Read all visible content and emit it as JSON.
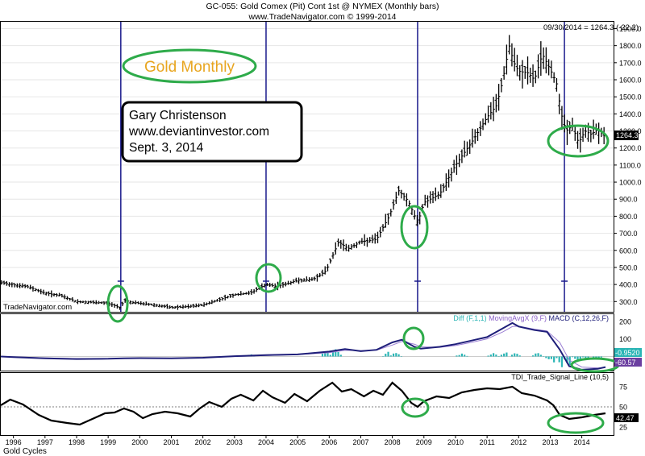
{
  "header": {
    "title": "GC-055:  Gold Comex (Pit) Cont 1st @ NYMEX  (Monthly bars)",
    "subtitle": "www.TradeNavigator.com © 1999-2014"
  },
  "price_readout": "09/30/2014 = 1264.3 (-22.2)",
  "watermark": "TradeNavigator.com",
  "footer_label": "Gold Cycles",
  "annotations": {
    "oval_title": "Gold Monthly",
    "box_lines": [
      "Gary Christenson",
      "www.deviantinvestor.com",
      "Sept. 3, 2014"
    ]
  },
  "colors": {
    "price_bars": "#000000",
    "cycle_lines": "#1a1a8c",
    "ovals": "#2eab4a",
    "oval_title": "#e8a51f",
    "macd_line": "#1f1f7a",
    "macd_signal": "#9b7fd4",
    "macd_hist": "#2bb5b5",
    "tdi_line": "#000000"
  },
  "chart_data": [
    {
      "type": "bar",
      "subtype": "ohlc",
      "ylim": [
        240,
        1940
      ],
      "yticks": [
        "300.0",
        "400.0",
        "500.0",
        "600.0",
        "700.0",
        "800.0",
        "900.0",
        "1000.0",
        "1100.0",
        "1200.0",
        "1300.0",
        "1400.0",
        "1500.0",
        "1600.0",
        "1700.0",
        "1800.0",
        "1900.0"
      ],
      "xticks": [
        "1996",
        "1997",
        "1998",
        "1999",
        "2000",
        "2001",
        "2002",
        "2003",
        "2004",
        "2005",
        "2006",
        "2007",
        "2008",
        "2009",
        "2010",
        "2011",
        "2012",
        "2013",
        "2014"
      ],
      "last_price_label": "1264.3",
      "anchors": [
        [
          1995.6,
          410
        ],
        [
          1996.0,
          400
        ],
        [
          1996.5,
          385
        ],
        [
          1997.0,
          350
        ],
        [
          1997.5,
          335
        ],
        [
          1998.0,
          300
        ],
        [
          1998.5,
          295
        ],
        [
          1999.0,
          290
        ],
        [
          1999.3,
          270
        ],
        [
          1999.4,
          262
        ],
        [
          1999.5,
          310
        ],
        [
          1999.75,
          295
        ],
        [
          2000.0,
          290
        ],
        [
          2000.5,
          280
        ],
        [
          2001.0,
          265
        ],
        [
          2001.5,
          270
        ],
        [
          2002.0,
          280
        ],
        [
          2002.5,
          310
        ],
        [
          2003.0,
          340
        ],
        [
          2003.5,
          350
        ],
        [
          2004.0,
          400
        ],
        [
          2004.3,
          390
        ],
        [
          2004.6,
          400
        ],
        [
          2005.0,
          425
        ],
        [
          2005.5,
          430
        ],
        [
          2005.9,
          480
        ],
        [
          2006.3,
          650
        ],
        [
          2006.6,
          610
        ],
        [
          2007.0,
          650
        ],
        [
          2007.5,
          665
        ],
        [
          2007.9,
          800
        ],
        [
          2008.2,
          950
        ],
        [
          2008.5,
          890
        ],
        [
          2008.8,
          760
        ],
        [
          2009.0,
          880
        ],
        [
          2009.5,
          930
        ],
        [
          2010.0,
          1100
        ],
        [
          2010.5,
          1230
        ],
        [
          2011.0,
          1380
        ],
        [
          2011.3,
          1450
        ],
        [
          2011.5,
          1600
        ],
        [
          2011.7,
          1800
        ],
        [
          2011.85,
          1700
        ],
        [
          2012.0,
          1650
        ],
        [
          2012.3,
          1640
        ],
        [
          2012.5,
          1600
        ],
        [
          2012.75,
          1750
        ],
        [
          2013.0,
          1660
        ],
        [
          2013.2,
          1580
        ],
        [
          2013.35,
          1400
        ],
        [
          2013.5,
          1300
        ],
        [
          2013.7,
          1330
        ],
        [
          2013.9,
          1230
        ],
        [
          2014.1,
          1300
        ],
        [
          2014.3,
          1280
        ],
        [
          2014.5,
          1310
        ],
        [
          2014.75,
          1264
        ]
      ]
    },
    {
      "type": "line",
      "title_parts": [
        "Diff (F,1,1)",
        "MovingAvgX (9,F)",
        "MACD (C,12,26,F)"
      ],
      "ylim": [
        -80,
        240
      ],
      "yticks": [
        "100",
        "200"
      ],
      "last_values": [
        "-0.9520",
        "-60.57"
      ],
      "x": [
        1995.6,
        1996.0,
        1997.0,
        1998.0,
        1999.0,
        1999.5,
        2000.0,
        2001.0,
        2002.0,
        2003.0,
        2004.0,
        2005.0,
        2006.0,
        2006.5,
        2007.0,
        2007.5,
        2008.0,
        2008.3,
        2008.7,
        2008.9,
        2009.5,
        2010.0,
        2010.5,
        2011.0,
        2011.5,
        2011.8,
        2012.0,
        2012.5,
        2012.9,
        2013.3,
        2013.6,
        2014.0,
        2014.5,
        2014.75
      ],
      "series": [
        {
          "values": [
            0,
            -3,
            -10,
            -14,
            -13,
            -10,
            -9,
            -10,
            -7,
            2,
            8,
            12,
            28,
            42,
            30,
            38,
            80,
            95,
            55,
            45,
            55,
            70,
            90,
            110,
            160,
            190,
            170,
            150,
            140,
            40,
            -55,
            -75,
            -70,
            -60
          ]
        },
        {
          "values": [
            0,
            -2,
            -8,
            -12,
            -13,
            -11,
            -9,
            -9,
            -7,
            0,
            6,
            11,
            22,
            35,
            33,
            36,
            65,
            85,
            70,
            55,
            52,
            62,
            80,
            100,
            140,
            170,
            172,
            155,
            145,
            80,
            -20,
            -60,
            -65,
            -62
          ]
        }
      ],
      "hist": [
        [
          2003.5,
          12
        ],
        [
          2005.9,
          30
        ],
        [
          2006.2,
          40
        ],
        [
          2007.9,
          30
        ],
        [
          2008.1,
          22
        ],
        [
          2010.2,
          15
        ],
        [
          2011.2,
          18
        ],
        [
          2011.6,
          25
        ],
        [
          2011.9,
          20
        ],
        [
          2012.6,
          22
        ],
        [
          2013.0,
          -22
        ],
        [
          2013.2,
          -50
        ],
        [
          2013.4,
          -70
        ],
        [
          2013.6,
          -55
        ],
        [
          2013.9,
          -25
        ],
        [
          2014.2,
          -15
        ],
        [
          2014.5,
          -8
        ]
      ]
    },
    {
      "type": "line",
      "title": "TDI_Trade_Signal_Line (10,5)",
      "ylim": [
        15,
        92
      ],
      "yticks": [
        "25",
        "50",
        "75"
      ],
      "reference_line": 50,
      "last_value_label": "42.47",
      "x": [
        1995.6,
        1995.9,
        1996.3,
        1996.8,
        1997.2,
        1997.7,
        1998.1,
        1998.5,
        1998.9,
        1999.2,
        1999.5,
        1999.8,
        2000.1,
        2000.4,
        2000.8,
        2001.2,
        2001.6,
        2001.9,
        2002.2,
        2002.6,
        2002.9,
        2003.2,
        2003.6,
        2003.9,
        2004.2,
        2004.6,
        2004.9,
        2005.3,
        2005.7,
        2006.1,
        2006.4,
        2006.7,
        2007.1,
        2007.4,
        2007.7,
        2008.0,
        2008.3,
        2008.6,
        2008.8,
        2009.0,
        2009.4,
        2009.8,
        2010.2,
        2010.6,
        2011.0,
        2011.4,
        2011.8,
        2012.1,
        2012.5,
        2012.9,
        2013.1,
        2013.3,
        2013.6,
        2014.0,
        2014.4,
        2014.75
      ],
      "values": [
        52,
        59,
        53,
        40,
        33,
        30,
        28,
        35,
        42,
        43,
        48,
        44,
        36,
        41,
        44,
        42,
        38,
        48,
        56,
        50,
        60,
        65,
        58,
        70,
        62,
        55,
        66,
        57,
        70,
        80,
        69,
        72,
        63,
        70,
        65,
        80,
        70,
        55,
        50,
        57,
        63,
        61,
        68,
        71,
        73,
        72,
        75,
        67,
        64,
        58,
        52,
        40,
        35,
        37,
        40,
        42
      ]
    }
  ]
}
